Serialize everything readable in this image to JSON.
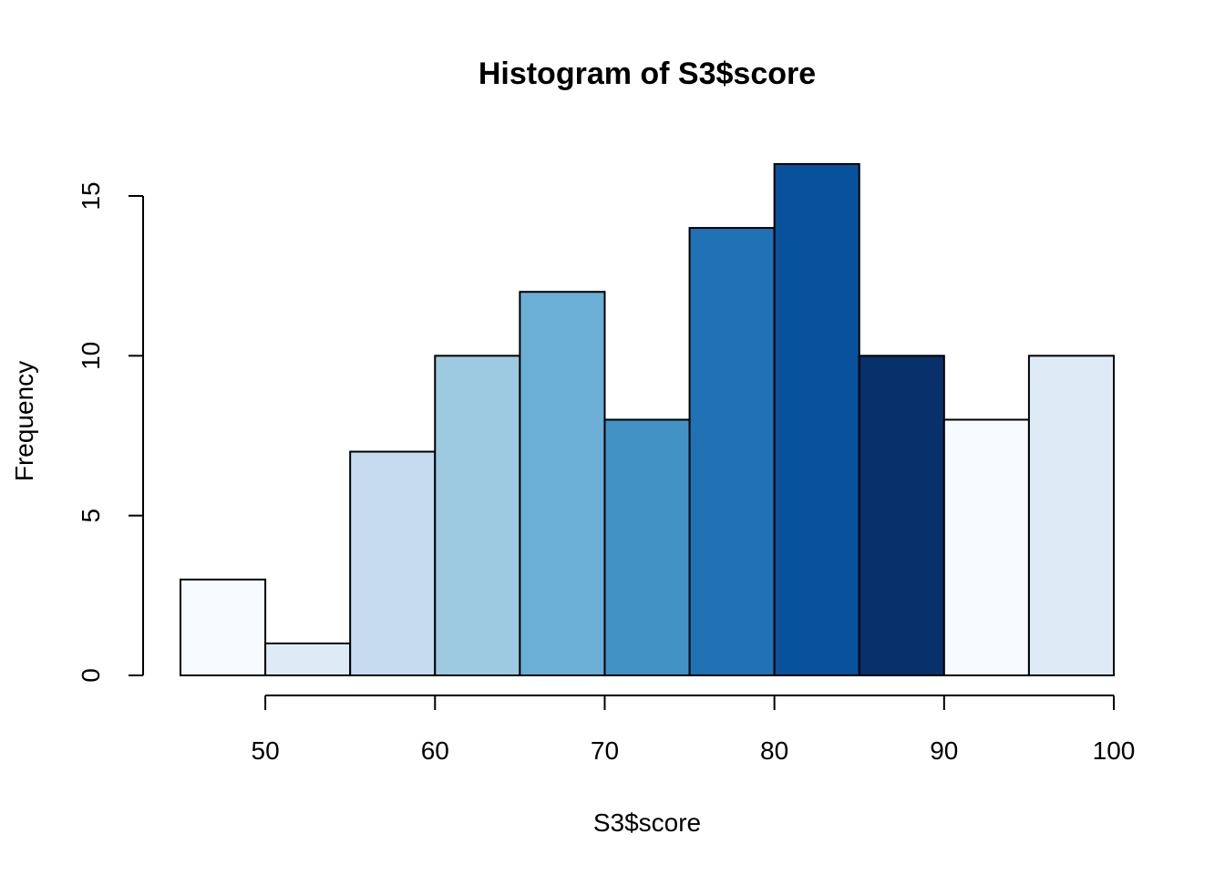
{
  "chart_data": {
    "type": "bar",
    "title": "Histogram of S3$score",
    "xlabel": "S3$score",
    "ylabel": "Frequency",
    "bin_edges": [
      45,
      50,
      55,
      60,
      65,
      70,
      75,
      80,
      85,
      90,
      95,
      100
    ],
    "values": [
      3,
      1,
      7,
      10,
      12,
      8,
      14,
      16,
      10,
      8,
      10
    ],
    "colors": [
      "#F7FBFF",
      "#DEEBF7",
      "#C6DBEF",
      "#9ECAE1",
      "#6BAED6",
      "#4292C6",
      "#2171B5",
      "#08519C",
      "#08306B",
      "#F7FBFF",
      "#DEEBF7"
    ],
    "x_ticks": [
      "50",
      "60",
      "70",
      "80",
      "90",
      "100"
    ],
    "y_ticks": [
      "0",
      "5",
      "10",
      "15"
    ],
    "xlim": [
      45,
      100
    ],
    "ylim": [
      0,
      16
    ],
    "grid": false,
    "legend": "none"
  }
}
